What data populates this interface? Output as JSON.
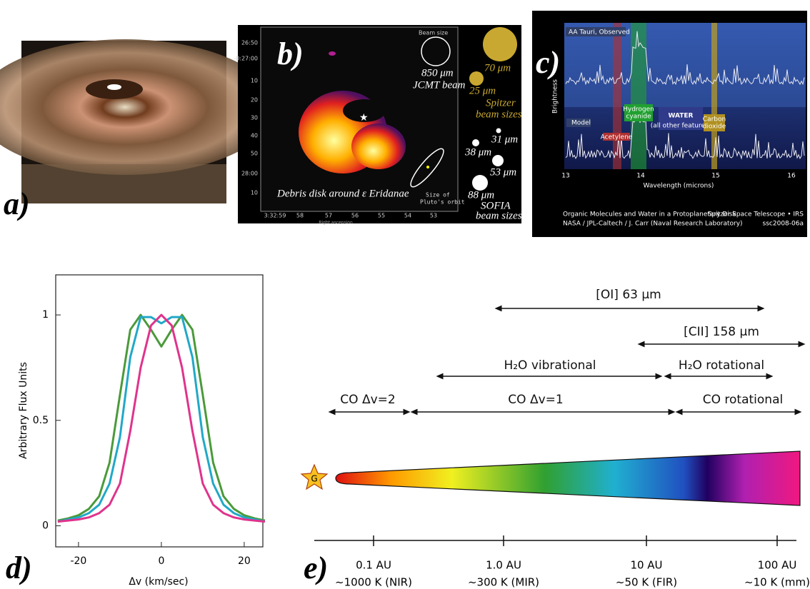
{
  "panels": {
    "a": {
      "label": "a)"
    },
    "b": {
      "label": "b)",
      "beam_size": "Beam size",
      "jcmt": "850 μm",
      "jcmt_beam": "JCMT beam",
      "spitzer_70": "70 μm",
      "spitzer_25": "25 μm",
      "spitzer_note1": "Spitzer",
      "spitzer_note2": "beam sizes",
      "sofia_31": "31 μm",
      "sofia_38": "38 μm",
      "sofia_53": "53 μm",
      "sofia_88": "88 μm",
      "sofia_note1": "SOFIA",
      "sofia_note2": "beam sizes",
      "disk": "Debris disk  around ε Eridanae",
      "pluto1": "Size of",
      "pluto2": "Pluto's orbit",
      "dec_ticks": [
        "26:50",
        "-0:27:00",
        "10",
        "20",
        "30",
        "40",
        "50",
        "28:00",
        "10"
      ],
      "ra_ticks": [
        "3:32:59",
        "58",
        "57",
        "56",
        "55",
        "54",
        "53"
      ],
      "ra_axis": "Right ascension"
    },
    "c": {
      "label": "c)",
      "observed": "AA Tauri, Observed",
      "model": "Model",
      "ylabel": "Brightness",
      "hcn": [
        "Hydrogen",
        "cyanide"
      ],
      "acetylene": "Acetylene",
      "water": "WATER",
      "water_note": "(all other features)",
      "co2": [
        "Carbon",
        "dioxide"
      ],
      "xticks": [
        "13",
        "14",
        "15",
        "16"
      ],
      "xlabel": "Wavelength (microns)",
      "caption": "Organic Molecules and Water in a Protoplanetary Disk",
      "telescope": "Spitzer Space Telescope • IRS",
      "credit": "NASA / JPL-Caltech / J. Carr (Naval Research Laboratory)",
      "id": "ssc2008-06a"
    },
    "d": {
      "label": "d)"
    },
    "e": {
      "label": "e)",
      "star": "G",
      "ranges": [
        "[OI] 63 μm",
        "[CII] 158 μm",
        "H₂O vibrational",
        "H₂O rotational",
        "CO Δv=2",
        "CO Δv=1",
        "CO rotational"
      ],
      "distances": [
        "0.1 AU",
        "1.0 AU",
        "10 AU",
        "100 AU"
      ],
      "temperatures": [
        "~1000 K (NIR)",
        "~300 K (MIR)",
        "~50 K (FIR)",
        "~10 K (mm)"
      ]
    }
  },
  "chart_data": {
    "type": "line",
    "ylabel": "Arbitrary Flux Units",
    "xlabel": "Δv (km/sec)",
    "x": [
      -25,
      -22.5,
      -20,
      -17.5,
      -15,
      -12.5,
      -10,
      -7.5,
      -5,
      -2.5,
      0,
      2.5,
      5,
      7.5,
      10,
      12.5,
      15,
      17.5,
      20,
      22.5,
      25
    ],
    "xlim": [
      -25.5,
      24.5
    ],
    "xticks": [
      -20,
      0,
      20
    ],
    "ylim": [
      -0.1,
      1.19
    ],
    "yticks": [
      0,
      0.5,
      1
    ],
    "series": [
      {
        "color": "#4a9a3a",
        "values": [
          0.025,
          0.035,
          0.05,
          0.08,
          0.14,
          0.3,
          0.62,
          0.93,
          1.0,
          0.93,
          0.85,
          0.93,
          1.0,
          0.93,
          0.62,
          0.3,
          0.14,
          0.08,
          0.05,
          0.035,
          0.025
        ]
      },
      {
        "color": "#21a8c8",
        "values": [
          0.02,
          0.03,
          0.04,
          0.06,
          0.1,
          0.2,
          0.42,
          0.8,
          0.99,
          0.99,
          0.96,
          0.99,
          0.99,
          0.8,
          0.42,
          0.2,
          0.1,
          0.06,
          0.04,
          0.03,
          0.02
        ]
      },
      {
        "color": "#e0338c",
        "values": [
          0.02,
          0.025,
          0.03,
          0.04,
          0.06,
          0.1,
          0.2,
          0.45,
          0.75,
          0.95,
          1.0,
          0.95,
          0.75,
          0.45,
          0.2,
          0.1,
          0.06,
          0.04,
          0.03,
          0.025,
          0.02
        ]
      }
    ]
  }
}
